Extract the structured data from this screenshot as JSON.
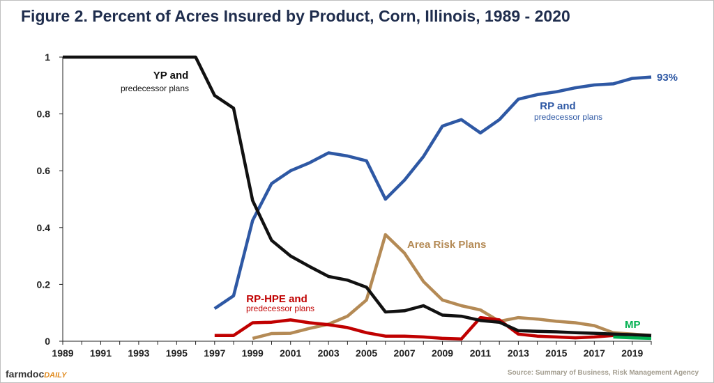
{
  "title": "Figure 2. Percent of Acres Insured by Product, Corn, Illinois, 1989 - 2020",
  "source": "Source: Summary of Business, Risk Management Agency",
  "brand": {
    "main": "farmdoc",
    "sub": "DAILY"
  },
  "colors": {
    "yp": "#111111",
    "rp": "#2e58a4",
    "hpe": "#c00000",
    "area": "#b48a55",
    "mp": "#00b050",
    "axis": "#222222"
  },
  "chart_data": {
    "type": "line",
    "xlim": [
      1989,
      2020
    ],
    "ylim": [
      0,
      1
    ],
    "yticks": [
      0,
      0.2,
      0.4,
      0.6,
      0.8,
      1
    ],
    "ytick_labels": [
      "0",
      "0.2",
      "0.4",
      "0.6",
      "0.8",
      "1"
    ],
    "xticks": [
      1989,
      1991,
      1993,
      1995,
      1997,
      1999,
      2001,
      2003,
      2005,
      2007,
      2009,
      2011,
      2013,
      2015,
      2017,
      2019
    ],
    "xtick_labels": [
      "1989",
      "1991",
      "1993",
      "1995",
      "1997",
      "1999",
      "2001",
      "2003",
      "2005",
      "2007",
      "2009",
      "2011",
      "2013",
      "2015",
      "2017",
      "2019"
    ],
    "grid": false,
    "series": [
      {
        "id": "yp",
        "label_line1": "YP and",
        "label_line2": "predecessor plans",
        "x": [
          1989,
          1990,
          1991,
          1992,
          1993,
          1994,
          1995,
          1996,
          1997,
          1998,
          1999,
          2000,
          2001,
          2002,
          2003,
          2004,
          2005,
          2006,
          2007,
          2008,
          2009,
          2010,
          2011,
          2012,
          2013,
          2014,
          2015,
          2016,
          2017,
          2018,
          2019,
          2020
        ],
        "y": [
          1,
          1,
          1,
          1,
          1,
          1,
          1,
          1,
          0.865,
          0.82,
          0.495,
          0.355,
          0.3,
          0.263,
          0.228,
          0.215,
          0.19,
          0.103,
          0.107,
          0.125,
          0.092,
          0.088,
          0.073,
          0.067,
          0.037,
          0.035,
          0.033,
          0.03,
          0.028,
          0.025,
          0.023,
          0.02
        ]
      },
      {
        "id": "rp",
        "label_line1": "RP and",
        "label_line2": "predecessor plans",
        "end_label": "93%",
        "x": [
          1997,
          1998,
          1999,
          2000,
          2001,
          2002,
          2003,
          2004,
          2005,
          2006,
          2007,
          2008,
          2009,
          2010,
          2011,
          2012,
          2013,
          2014,
          2015,
          2016,
          2017,
          2018,
          2019,
          2020
        ],
        "y": [
          0.115,
          0.16,
          0.425,
          0.555,
          0.6,
          0.628,
          0.663,
          0.652,
          0.635,
          0.5,
          0.567,
          0.65,
          0.757,
          0.78,
          0.733,
          0.78,
          0.852,
          0.868,
          0.878,
          0.892,
          0.902,
          0.906,
          0.925,
          0.93
        ]
      },
      {
        "id": "hpe",
        "label_line1": "RP-HPE and",
        "label_line2": "predecessor plans",
        "x": [
          1997,
          1998,
          1999,
          2000,
          2001,
          2002,
          2003,
          2004,
          2005,
          2006,
          2007,
          2008,
          2009,
          2010,
          2011,
          2012,
          2013,
          2014,
          2015,
          2016,
          2017,
          2018
        ],
        "y": [
          0.02,
          0.02,
          0.065,
          0.067,
          0.075,
          0.065,
          0.058,
          0.048,
          0.03,
          0.018,
          0.018,
          0.015,
          0.01,
          0.008,
          0.083,
          0.075,
          0.025,
          0.018,
          0.015,
          0.012,
          0.015,
          0.02
        ]
      },
      {
        "id": "area",
        "label_line1": "Area Risk Plans",
        "x": [
          1999,
          2000,
          2001,
          2002,
          2003,
          2004,
          2005,
          2006,
          2007,
          2008,
          2009,
          2010,
          2011,
          2012,
          2013,
          2014,
          2015,
          2016,
          2017,
          2018,
          2019,
          2020
        ],
        "y": [
          0.01,
          0.027,
          0.028,
          0.045,
          0.06,
          0.088,
          0.145,
          0.375,
          0.31,
          0.21,
          0.145,
          0.125,
          0.11,
          0.07,
          0.083,
          0.078,
          0.07,
          0.065,
          0.055,
          0.03,
          0.025,
          0.02
        ]
      },
      {
        "id": "mp",
        "label_line1": "MP",
        "x": [
          2018,
          2019,
          2020
        ],
        "y": [
          0.015,
          0.012,
          0.01
        ]
      }
    ]
  }
}
